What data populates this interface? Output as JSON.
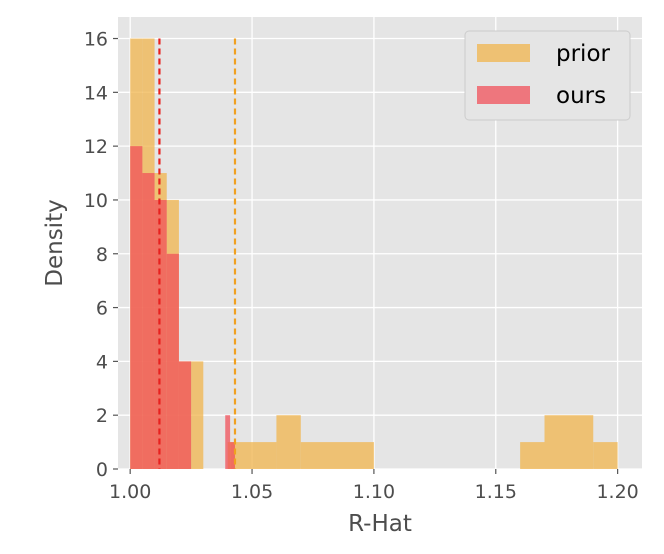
{
  "chart_data": {
    "type": "bar",
    "xlabel": "R-Hat",
    "ylabel": "Density",
    "xlim": [
      0.995,
      1.21
    ],
    "ylim": [
      0,
      16.8
    ],
    "xticks": [
      1.0,
      1.05,
      1.1,
      1.15,
      1.2
    ],
    "xtick_labels": [
      "1.00",
      "1.05",
      "1.10",
      "1.15",
      "1.20"
    ],
    "yticks": [
      0,
      2,
      4,
      6,
      8,
      10,
      12,
      14,
      16
    ],
    "ytick_labels": [
      "0",
      "2",
      "4",
      "6",
      "8",
      "10",
      "12",
      "14",
      "16"
    ],
    "grid": true,
    "legend_position": "top-right",
    "series": [
      {
        "name": "prior",
        "color": "#f0b44c",
        "opacity": 0.75,
        "bins": [
          {
            "x0": 1.0,
            "x1": 1.005,
            "value": 16
          },
          {
            "x0": 1.005,
            "x1": 1.01,
            "value": 16
          },
          {
            "x0": 1.01,
            "x1": 1.015,
            "value": 11
          },
          {
            "x0": 1.015,
            "x1": 1.02,
            "value": 10
          },
          {
            "x0": 1.02,
            "x1": 1.025,
            "value": 4
          },
          {
            "x0": 1.025,
            "x1": 1.03,
            "value": 4
          },
          {
            "x0": 1.04,
            "x1": 1.06,
            "value": 1
          },
          {
            "x0": 1.06,
            "x1": 1.07,
            "value": 2
          },
          {
            "x0": 1.07,
            "x1": 1.1,
            "value": 1
          },
          {
            "x0": 1.16,
            "x1": 1.17,
            "value": 1
          },
          {
            "x0": 1.17,
            "x1": 1.19,
            "value": 2
          },
          {
            "x0": 1.19,
            "x1": 1.2,
            "value": 1
          }
        ],
        "mean_line": 1.043
      },
      {
        "name": "ours",
        "color": "#f0505a",
        "opacity": 0.75,
        "bins": [
          {
            "x0": 1.0,
            "x1": 1.005,
            "value": 12
          },
          {
            "x0": 1.005,
            "x1": 1.01,
            "value": 11
          },
          {
            "x0": 1.01,
            "x1": 1.015,
            "value": 10
          },
          {
            "x0": 1.015,
            "x1": 1.02,
            "value": 8
          },
          {
            "x0": 1.02,
            "x1": 1.025,
            "value": 4
          },
          {
            "x0": 1.039,
            "x1": 1.041,
            "value": 2
          },
          {
            "x0": 1.041,
            "x1": 1.043,
            "value": 1
          }
        ],
        "mean_line": 1.012
      }
    ],
    "mean_line_colors": {
      "prior": "#f0a020",
      "ours": "#e8201e"
    }
  }
}
